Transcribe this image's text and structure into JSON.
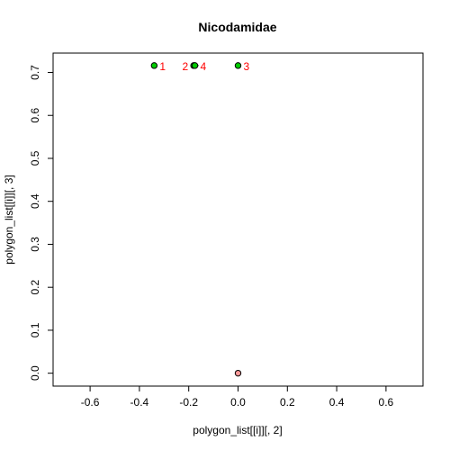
{
  "chart_data": {
    "type": "scatter",
    "title": "Nicodamidae",
    "xlabel": "polygon_list[[i]][, 2]",
    "ylabel": "polygon_list[[i]][, 3]",
    "xlim": [
      -0.75,
      0.75
    ],
    "ylim": [
      -0.03,
      0.745
    ],
    "xticks": [
      -0.6,
      -0.4,
      -0.2,
      0.0,
      0.2,
      0.4,
      0.6
    ],
    "xtick_labels": [
      "-0.6",
      "-0.4",
      "-0.2",
      "0.0",
      "0.2",
      "0.4",
      "0.6"
    ],
    "yticks": [
      0.0,
      0.1,
      0.2,
      0.3,
      0.4,
      0.5,
      0.6,
      0.7
    ],
    "ytick_labels": [
      "0.0",
      "0.1",
      "0.2",
      "0.3",
      "0.4",
      "0.5",
      "0.6",
      "0.7"
    ],
    "grid": false,
    "colors": {
      "vertex_fill": "#00cc00",
      "centroid_fill": "#ff9999",
      "label": "#ff0000",
      "edge": "#000000"
    },
    "points": [
      {
        "label": "1",
        "x": -0.34,
        "y": 0.716,
        "fill": "#00cc00",
        "label_side": "right"
      },
      {
        "label": "2",
        "x": -0.18,
        "y": 0.716,
        "fill": "#00cc00",
        "label_side": "left"
      },
      {
        "label": "3",
        "x": 0.0,
        "y": 0.716,
        "fill": "#00cc00",
        "label_side": "right"
      },
      {
        "label": "4",
        "x": -0.175,
        "y": 0.716,
        "fill": "#00cc00",
        "label_side": "right"
      },
      {
        "label": "",
        "x": 0.0,
        "y": 0.0,
        "fill": "#ff9999",
        "label_side": "none"
      }
    ],
    "segments": [
      {
        "x1": -0.18,
        "y1": 0.716,
        "x2": -0.16,
        "y2": 0.716
      }
    ]
  }
}
